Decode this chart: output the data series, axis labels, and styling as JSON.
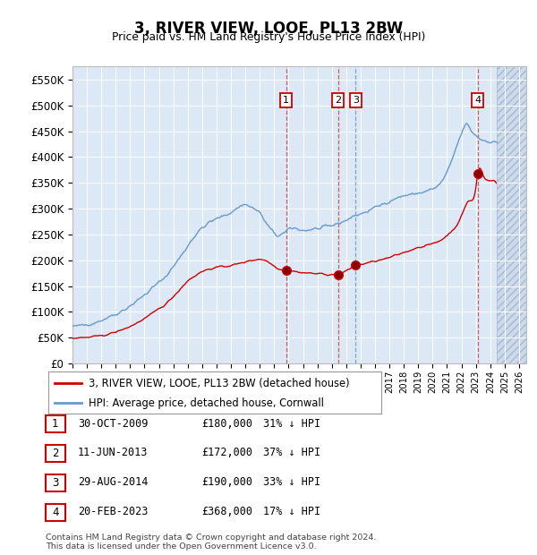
{
  "title": "3, RIVER VIEW, LOOE, PL13 2BW",
  "subtitle": "Price paid vs. HM Land Registry's House Price Index (HPI)",
  "legend_property": "3, RIVER VIEW, LOOE, PL13 2BW (detached house)",
  "legend_hpi": "HPI: Average price, detached house, Cornwall",
  "footer": "Contains HM Land Registry data © Crown copyright and database right 2024.\nThis data is licensed under the Open Government Licence v3.0.",
  "transactions": [
    {
      "num": 1,
      "date": "30-OCT-2009",
      "price": 180000,
      "pct": "31% ↓ HPI",
      "x": 2009.83
    },
    {
      "num": 2,
      "date": "11-JUN-2013",
      "price": 172000,
      "pct": "37% ↓ HPI",
      "x": 2013.44
    },
    {
      "num": 3,
      "date": "29-AUG-2014",
      "price": 190000,
      "pct": "33% ↓ HPI",
      "x": 2014.66
    },
    {
      "num": 4,
      "date": "20-FEB-2023",
      "price": 368000,
      "pct": "17% ↓ HPI",
      "x": 2023.13
    }
  ],
  "property_color": "#cc0000",
  "hpi_color": "#6699cc",
  "dashed_line_color": "#cc4444",
  "dashed_blue_color": "#6699cc",
  "background_color": "#ffffff",
  "plot_bg_color": "#dce8f5",
  "ylim": [
    0,
    575000
  ],
  "yticks": [
    0,
    50000,
    100000,
    150000,
    200000,
    250000,
    300000,
    350000,
    400000,
    450000,
    500000,
    550000
  ],
  "xlim_start": 1995.0,
  "xlim_end": 2026.5,
  "hatch_start": 2024.42
}
